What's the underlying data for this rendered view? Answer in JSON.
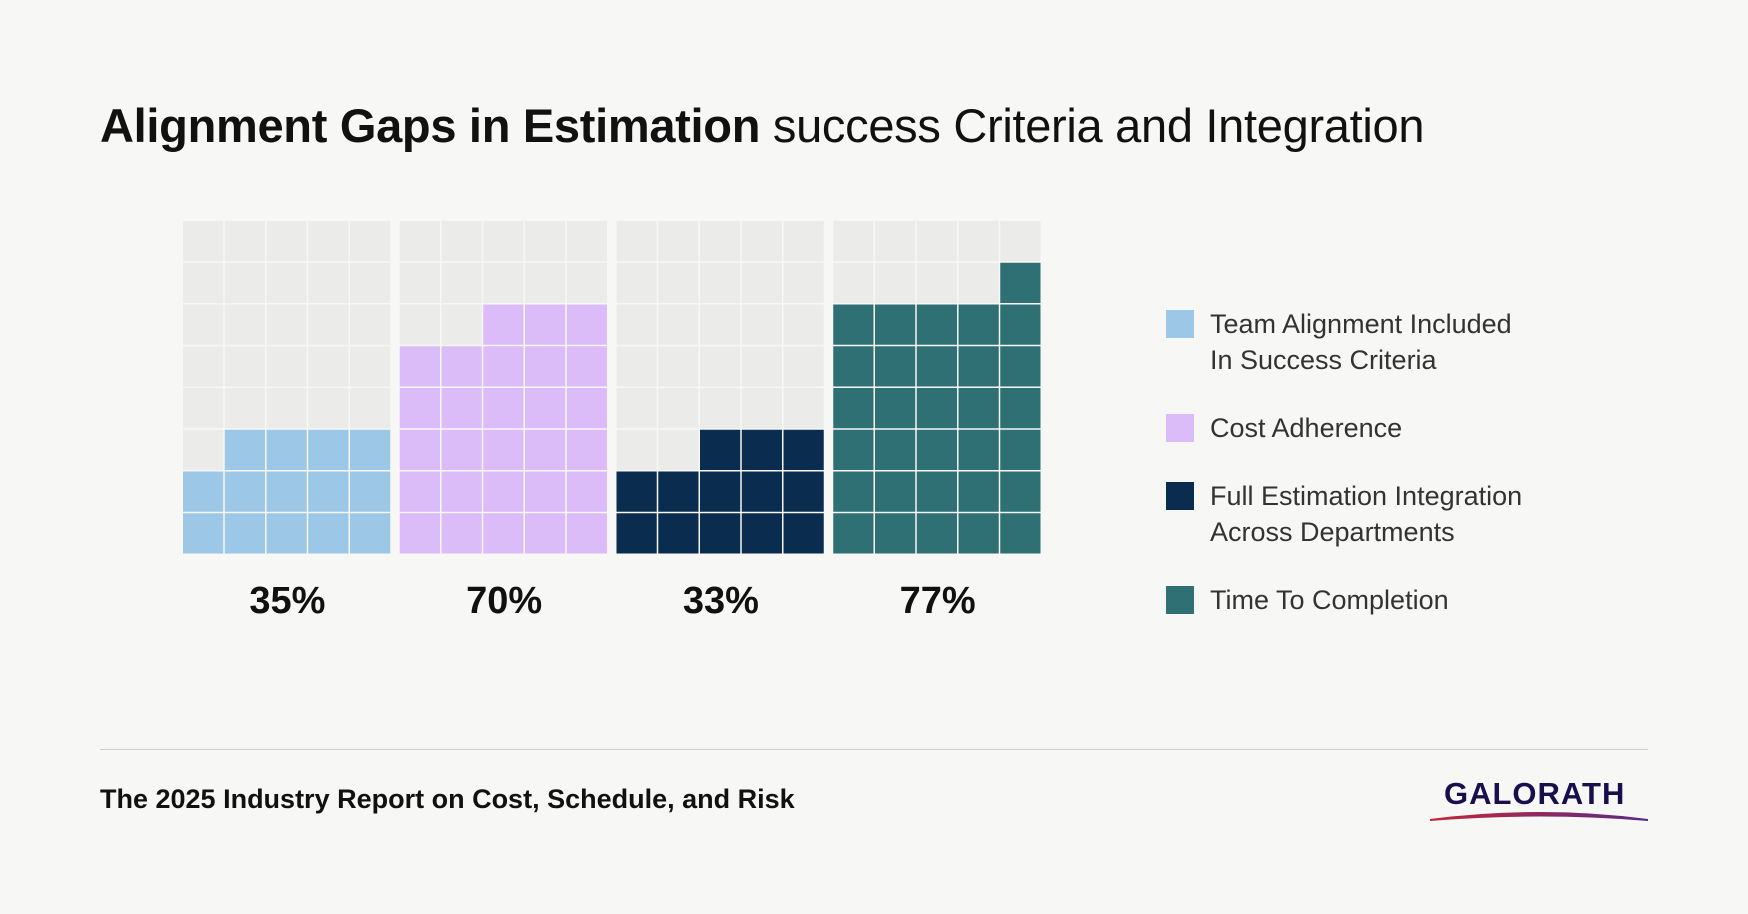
{
  "title": {
    "bold": "Alignment Gaps in Estimation",
    "regular": " success Criteria and Integration"
  },
  "chart_data": {
    "type": "waffle",
    "unit_per_cell_percent": 2.5,
    "grid": {
      "columns": 5,
      "rows": 8
    },
    "series": [
      {
        "name": "Team Alignment Included\n In Success Criteria",
        "value": 35,
        "label": "35%",
        "color": "#9dc7e7"
      },
      {
        "name": "Cost Adherence",
        "value": 70,
        "label": "70%",
        "color": "#dbbcf9"
      },
      {
        "name": "Full Estimation Integration\nAcross Departments",
        "value": 33,
        "label": "33%",
        "color": "#0a2d4f"
      },
      {
        "name": "Time To Completion",
        "value": 77,
        "label": "77%",
        "color": "#2e7074"
      }
    ],
    "empty_color": "#ebebea",
    "legend_position": "right"
  },
  "legend": {
    "items": [
      {
        "label": "Team Alignment Included\n In Success Criteria",
        "color": "#9dc7e7"
      },
      {
        "label": "Cost Adherence",
        "color": "#dbbcf9"
      },
      {
        "label": "Full Estimation Integration\nAcross Departments",
        "color": "#0a2d4f"
      },
      {
        "label": "Time To Completion",
        "color": "#2e7074"
      }
    ]
  },
  "footer": {
    "text": "The 2025 Industry Report on Cost, Schedule, and Risk"
  },
  "logo": {
    "text": "GALORATH",
    "text_color": "#1a0f4d",
    "swoosh_color": "#c0283c"
  }
}
